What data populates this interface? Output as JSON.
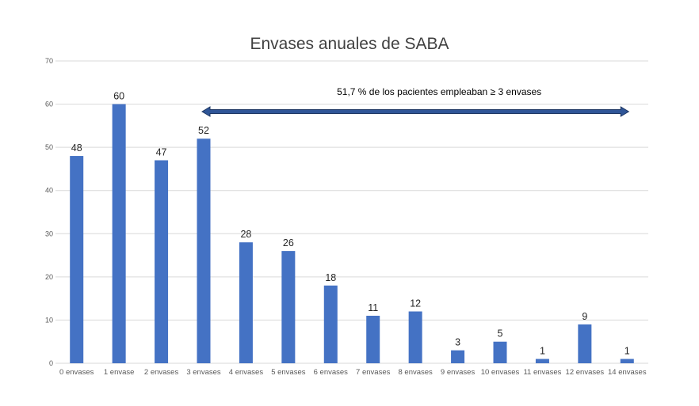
{
  "chart_data": {
    "type": "bar",
    "title": "Envases anuales de SABA",
    "xlabel": "",
    "ylabel": "",
    "categories": [
      "0 envases",
      "1 envase",
      "2 envases",
      "3 envases",
      "4 envases",
      "5 envases",
      "6 envases",
      "7 envases",
      "8 envases",
      "9 envases",
      "10 envases",
      "11 envases",
      "12 envases",
      "14 envases"
    ],
    "values": [
      48,
      60,
      47,
      52,
      28,
      26,
      18,
      11,
      12,
      3,
      5,
      1,
      9,
      1
    ],
    "ylim": [
      0,
      70
    ],
    "yticks": [
      0,
      10,
      20,
      30,
      40,
      50,
      60,
      70
    ],
    "grid": true,
    "legend": "none",
    "annotation": {
      "text": "51,7 % de los pacientes empleaban ≥ 3 envases",
      "arrow_from_category": "3 envases",
      "arrow_to_category": "14 envases",
      "arrow_y_value": 59
    },
    "colors": {
      "bar": "#4472C4",
      "arrow_fill": "#2F5597",
      "arrow_stroke": "#1F3864",
      "grid": "#D9D9D9"
    }
  }
}
